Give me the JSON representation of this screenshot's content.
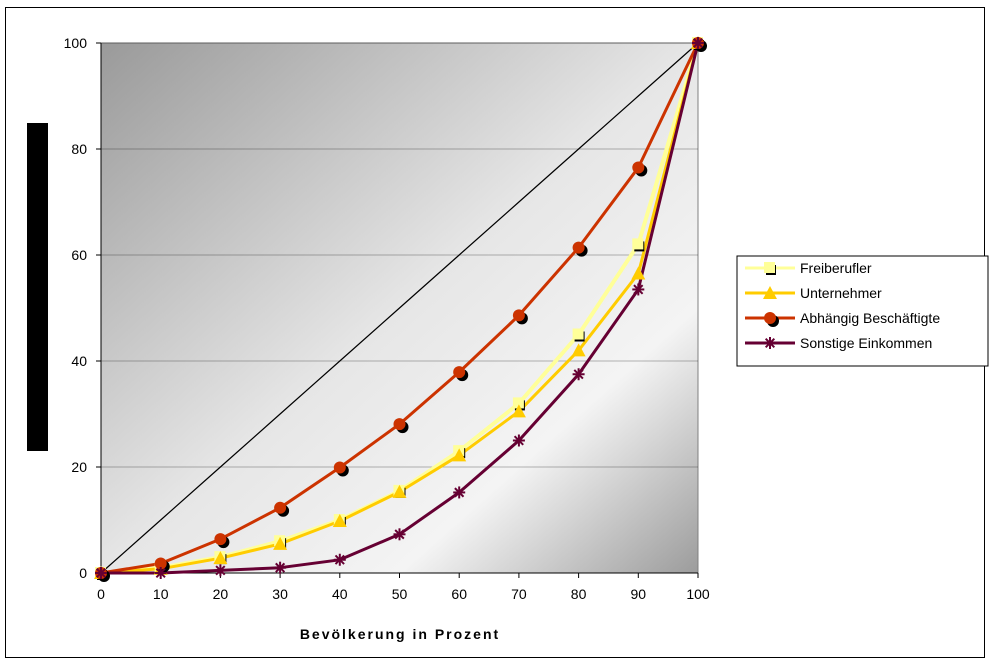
{
  "chart_data": {
    "type": "line",
    "xlabel": "Bevölkerung in Prozent",
    "ylabel": "",
    "xlim": [
      0,
      100
    ],
    "ylim": [
      0,
      100
    ],
    "x_ticks": [
      "0",
      "10",
      "20",
      "30",
      "40",
      "50",
      "60",
      "70",
      "80",
      "90",
      "100"
    ],
    "y_ticks": [
      "0",
      "20",
      "40",
      "60",
      "80",
      "100"
    ],
    "x": [
      0,
      10,
      20,
      30,
      40,
      50,
      60,
      70,
      80,
      90,
      100
    ],
    "grid": "horizontal",
    "legend_position": "right",
    "series": [
      {
        "key": "equality",
        "values": [
          0,
          10,
          20,
          30,
          40,
          50,
          60,
          70,
          80,
          90,
          100
        ],
        "color": "#000000",
        "marker": "none"
      },
      {
        "key": "freiberufler",
        "name": "Freiberufler",
        "values": [
          0,
          1,
          3,
          6,
          10,
          15.5,
          23,
          32,
          45,
          62,
          100
        ],
        "color": "#ffff99",
        "marker": "square"
      },
      {
        "key": "unternehmer",
        "name": "Unternehmer",
        "values": [
          0,
          0.8,
          2.8,
          5.5,
          9.8,
          15.3,
          22.2,
          30.5,
          42,
          56.5,
          100
        ],
        "color": "#ffcc00",
        "marker": "triangle"
      },
      {
        "key": "abhaengig",
        "name": "Abhängig Beschäftigte",
        "values": [
          0,
          1.8,
          6.4,
          12.3,
          19.9,
          28.1,
          37.9,
          48.6,
          61.4,
          76.5,
          100
        ],
        "color": "#cc3300",
        "marker": "circle"
      },
      {
        "key": "sonstige",
        "name": "Sonstige Einkommen",
        "values": [
          0,
          0,
          0.5,
          1,
          2.5,
          7.3,
          15.2,
          25,
          37.5,
          53.5,
          100
        ],
        "color": "#660033",
        "marker": "star"
      }
    ]
  }
}
